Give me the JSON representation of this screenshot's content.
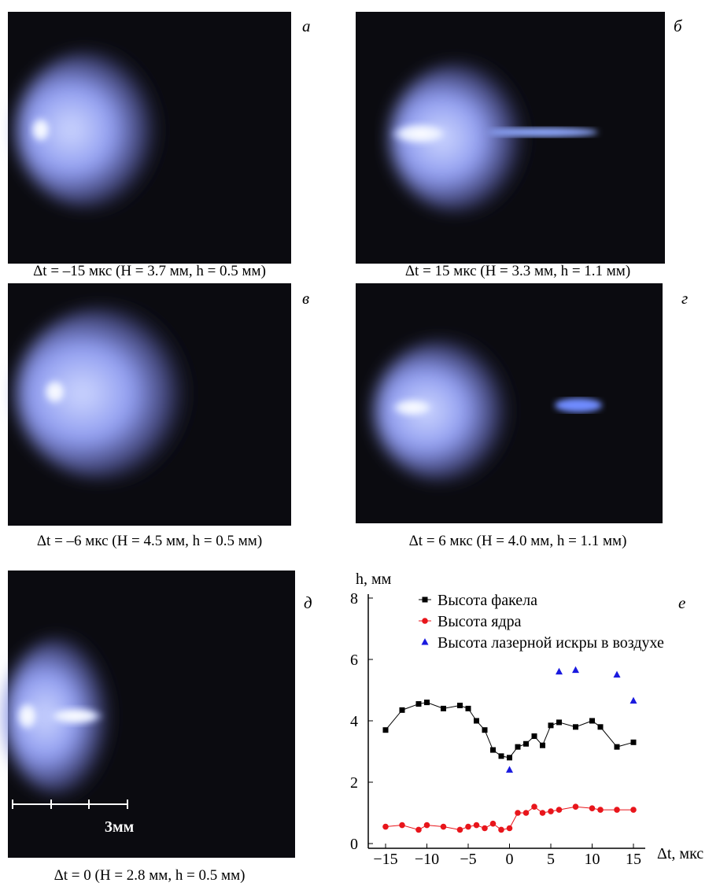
{
  "panels": [
    {
      "label": "а",
      "caption": "Δt = –15 мкс (H = 3.7 мм, h = 0.5 мм)"
    },
    {
      "label": "б",
      "caption": "Δt = 15 мкс (H = 3.3 мм, h = 1.1 мм)"
    },
    {
      "label": "в",
      "caption": "Δt = –6 мкс (H = 4.5 мм, h = 0.5 мм)"
    },
    {
      "label": "г",
      "caption": "Δt = 6 мкс (H = 4.0 мм, h = 1.1 мм)"
    },
    {
      "label": "д",
      "caption": "Δt = 0 (H = 2.8 мм, h = 0.5 мм)"
    }
  ],
  "scale_bar": "3мм",
  "chart_data": {
    "type": "line",
    "label": "е",
    "y_label": "h, мм",
    "x_label": "Δt, мкс",
    "xlim": [
      -15,
      15
    ],
    "ylim": [
      0,
      8
    ],
    "xticks": [
      {
        "value": -15,
        "label": "−15"
      },
      {
        "value": -10,
        "label": "−10"
      },
      {
        "value": -5,
        "label": "−5"
      },
      0,
      5,
      10,
      15
    ],
    "yticks": [
      0,
      2,
      4,
      6,
      8
    ],
    "series": [
      {
        "name": "Высота факела",
        "color": "#000000",
        "marker": "square",
        "line": true,
        "x": [
          -15,
          -13,
          -11,
          -10,
          -8,
          -6,
          -5,
          -4,
          -3,
          -2,
          -1,
          0,
          1,
          2,
          3,
          4,
          5,
          6,
          8,
          10,
          11,
          13,
          15
        ],
        "values": [
          3.7,
          4.35,
          4.55,
          4.6,
          4.4,
          4.5,
          4.4,
          4.0,
          3.7,
          3.05,
          2.85,
          2.8,
          3.15,
          3.25,
          3.5,
          3.2,
          3.85,
          3.95,
          3.8,
          4.0,
          3.8,
          3.15,
          3.3
        ]
      },
      {
        "name": "Высота ядра",
        "color": "#e8151b",
        "marker": "circle",
        "line": true,
        "x": [
          -15,
          -13,
          -11,
          -10,
          -8,
          -6,
          -5,
          -4,
          -3,
          -2,
          -1,
          0,
          1,
          2,
          3,
          4,
          5,
          6,
          8,
          10,
          11,
          13,
          15
        ],
        "values": [
          0.55,
          0.6,
          0.45,
          0.6,
          0.55,
          0.45,
          0.55,
          0.6,
          0.5,
          0.65,
          0.45,
          0.5,
          1.0,
          1.0,
          1.2,
          1.0,
          1.05,
          1.1,
          1.2,
          1.15,
          1.1,
          1.1,
          1.1
        ]
      },
      {
        "name": "Высота лазерной искры в воздухе",
        "color": "#1a1adf",
        "marker": "triangle",
        "line": false,
        "x": [
          0,
          6,
          8,
          13,
          15
        ],
        "values": [
          2.4,
          5.6,
          5.65,
          5.5,
          4.65
        ]
      }
    ]
  }
}
